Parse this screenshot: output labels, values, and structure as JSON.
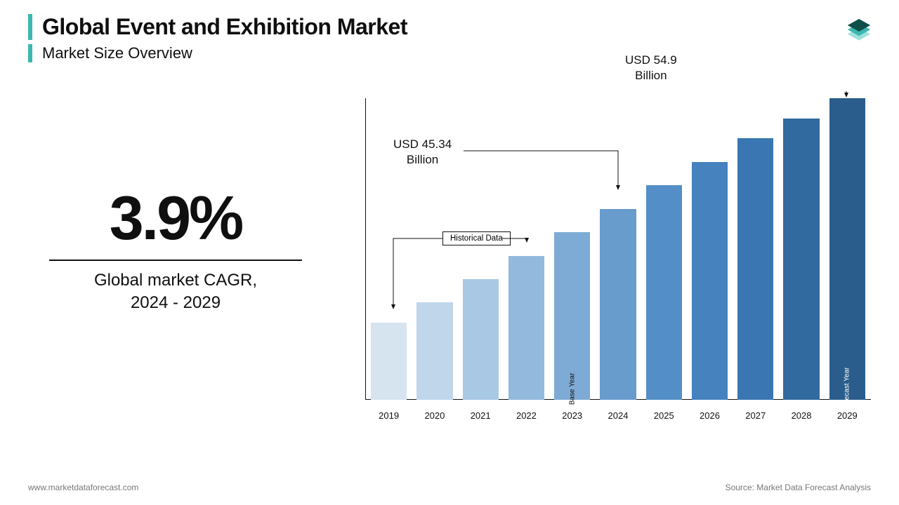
{
  "header": {
    "title": "Global Event and Exhibition Market",
    "subtitle": "Market Size Overview",
    "accent_color": "#3db8b0"
  },
  "logo": {
    "stack_colors": [
      "#0f4f4a",
      "#3db8b0",
      "#9fe0dc"
    ]
  },
  "cagr": {
    "value": "3.9%",
    "label_line1": "Global market CAGR,",
    "label_line2": "2024 - 2029",
    "value_fontsize": 88,
    "label_fontsize": 24
  },
  "chart": {
    "type": "bar",
    "categories": [
      "2019",
      "2020",
      "2021",
      "2022",
      "2023",
      "2024",
      "2025",
      "2026",
      "2027",
      "2028",
      "2029"
    ],
    "values": [
      115,
      145,
      180,
      215,
      250,
      285,
      320,
      355,
      390,
      420,
      450
    ],
    "max_height": 450,
    "bar_colors": [
      "#d6e4f0",
      "#bfd6eb",
      "#a9c8e4",
      "#93b9dd",
      "#7dabd5",
      "#679ccd",
      "#538fc6",
      "#4582be",
      "#3a76b1",
      "#316a9f",
      "#2a5d8c"
    ],
    "bar_labels": {
      "4": "Base Year",
      "10": "Forecast Year"
    },
    "bar_label_color_light": "#ffffff",
    "axis_color": "#111111",
    "xlabel_fontsize": 13
  },
  "annotations": {
    "a2024": {
      "line1": "USD 45.34",
      "line2": "Billion"
    },
    "a2029": {
      "line1": "USD 54.9",
      "line2": "Billion"
    },
    "historical": "Historical Data"
  },
  "footer": {
    "left": "www.marketdataforecast.com",
    "right": "Source: Market Data Forecast Analysis"
  }
}
